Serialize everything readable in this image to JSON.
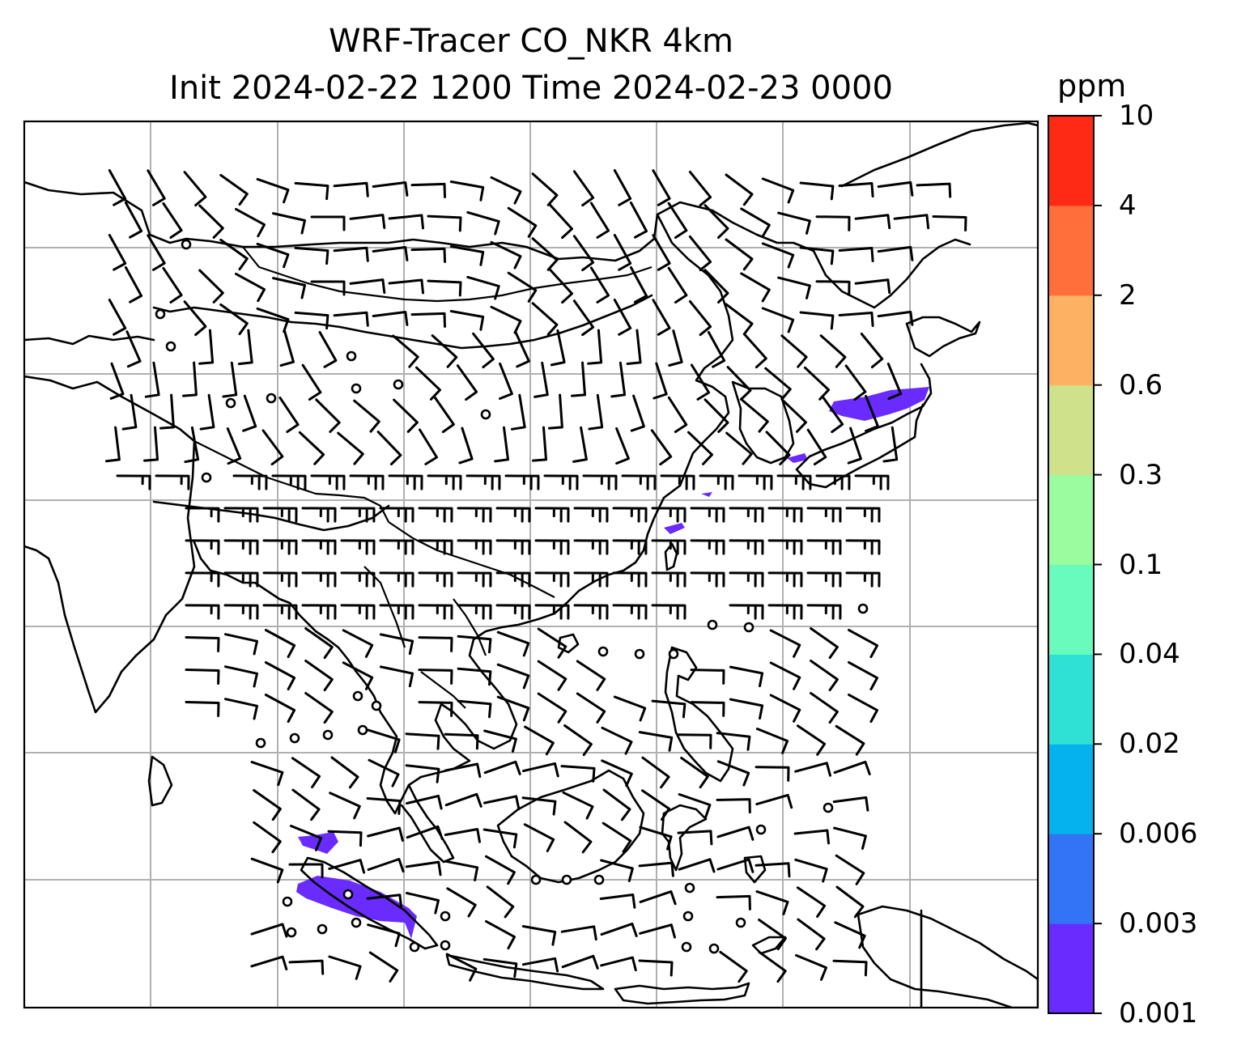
{
  "title": {
    "line1": "WRF-Tracer CO_NKR 4km",
    "line2": "Init 2024-02-22 1200 Time 2024-02-23 0000"
  },
  "colorbar": {
    "unit": "ppm",
    "levels": [
      "0.001",
      "0.003",
      "0.006",
      "0.02",
      "0.04",
      "0.1",
      "0.3",
      "0.6",
      "2",
      "4",
      "10"
    ],
    "colors": [
      "#6a2bff",
      "#3373f5",
      "#05b2ee",
      "#2fe0d4",
      "#69fbbe",
      "#9bfb9f",
      "#cfe18a",
      "#fdb162",
      "#fe6f3b",
      "#fe2a16"
    ]
  },
  "map": {
    "features": [
      "coastlines",
      "country-borders",
      "gridlines",
      "wind-barbs",
      "tracer-concentration"
    ],
    "gridline_color": "#b0b0b0"
  }
}
